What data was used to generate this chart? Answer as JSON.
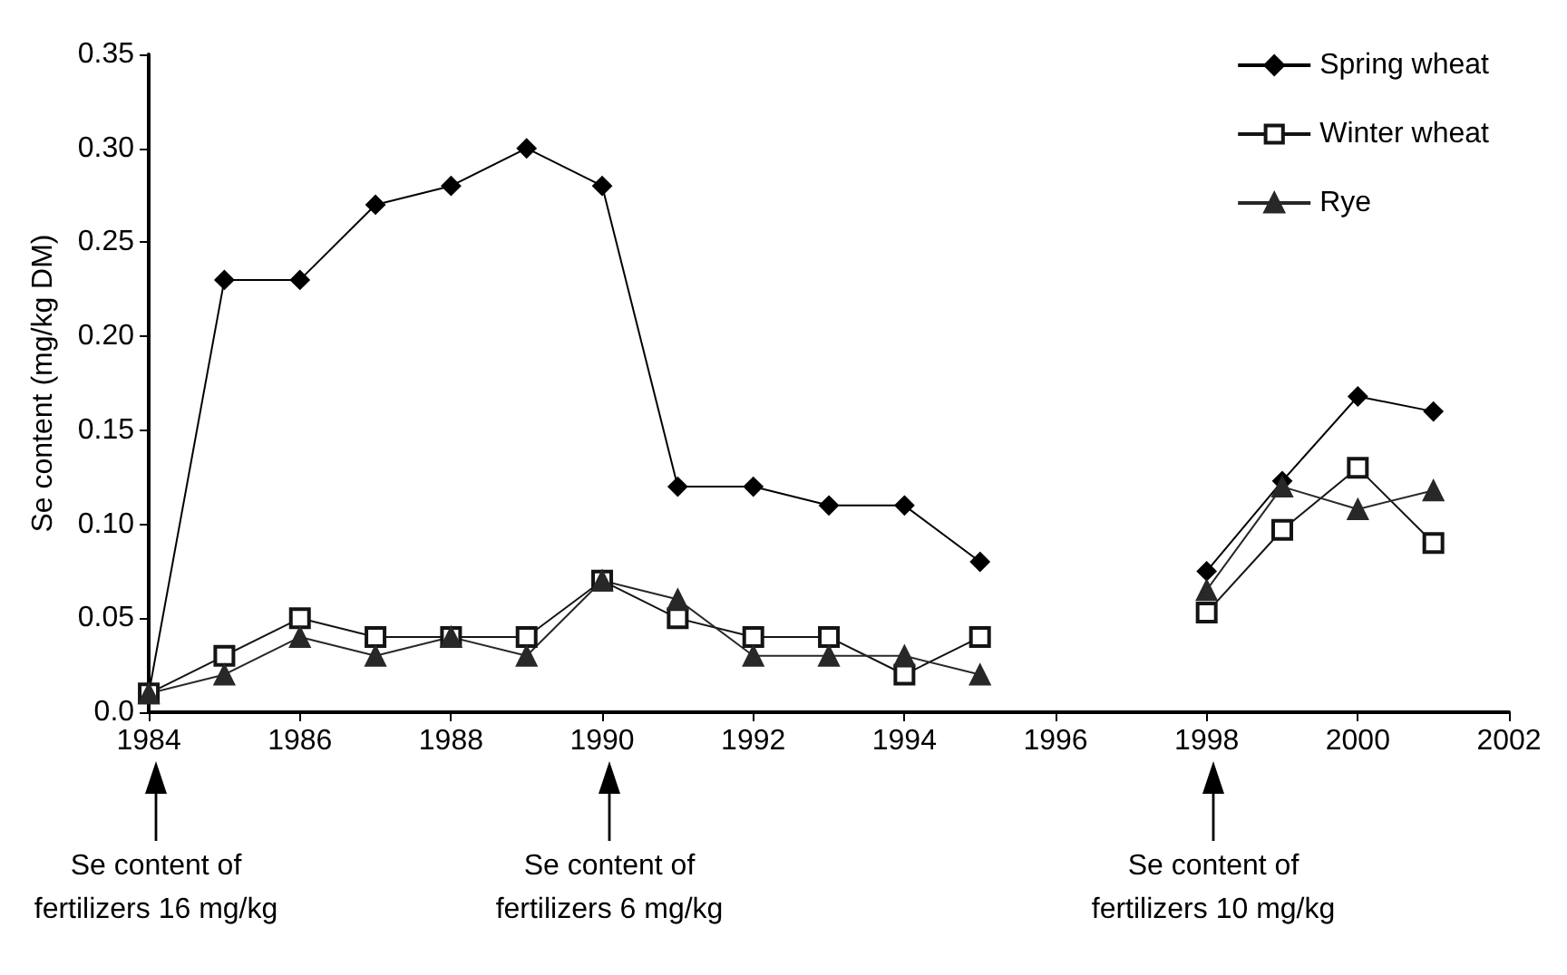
{
  "chart_data": {
    "type": "line",
    "ylabel": "Se content (mg/kg DM)",
    "x": [
      1984,
      1985,
      1986,
      1987,
      1988,
      1989,
      1990,
      1991,
      1992,
      1993,
      1994,
      1995,
      1996,
      1998,
      1999,
      2000,
      2001
    ],
    "series": [
      {
        "name": "Spring wheat",
        "color": "#000000",
        "marker": "diamond",
        "values": [
          0.01,
          0.23,
          0.23,
          0.27,
          0.28,
          0.3,
          0.28,
          0.12,
          0.12,
          0.11,
          0.11,
          0.08,
          null,
          0.075,
          0.123,
          0.168,
          0.16
        ]
      },
      {
        "name": "Winter wheat",
        "color": "#141414",
        "marker": "square",
        "values": [
          0.01,
          0.03,
          0.05,
          0.04,
          0.04,
          0.04,
          0.07,
          0.05,
          0.04,
          0.04,
          0.02,
          0.04,
          null,
          0.053,
          0.097,
          0.13,
          0.09
        ]
      },
      {
        "name": "Rye",
        "color": "#282828",
        "marker": "triangle",
        "values": [
          0.01,
          0.02,
          0.04,
          0.03,
          0.04,
          0.03,
          0.07,
          0.06,
          0.03,
          0.03,
          0.03,
          0.02,
          null,
          0.065,
          0.12,
          0.108,
          0.118
        ]
      }
    ],
    "xlim": [
      1984,
      2002
    ],
    "xticks": [
      1984,
      1986,
      1988,
      1990,
      1992,
      1994,
      1996,
      1998,
      2000,
      2002
    ],
    "ylim": [
      0,
      0.35
    ],
    "yticks": [
      {
        "value": 0,
        "label": "0.0"
      },
      {
        "value": 0.05,
        "label": "0.05"
      },
      {
        "value": 0.1,
        "label": "0.10"
      },
      {
        "value": 0.15,
        "label": "0.15"
      },
      {
        "value": 0.2,
        "label": "0.20"
      },
      {
        "value": 0.25,
        "label": "0.25"
      },
      {
        "value": 0.3,
        "label": "0.30"
      },
      {
        "value": 0.35,
        "label": "0.35"
      }
    ],
    "grid": false,
    "legend": "top right",
    "line_style": "solid",
    "annotations": [
      "Se content of\nfertilizers 16 mg/kg",
      "Se content of\nfertilizers 6 mg/kg",
      "Se content of\nfertilizers 10 mg/kg"
    ]
  }
}
